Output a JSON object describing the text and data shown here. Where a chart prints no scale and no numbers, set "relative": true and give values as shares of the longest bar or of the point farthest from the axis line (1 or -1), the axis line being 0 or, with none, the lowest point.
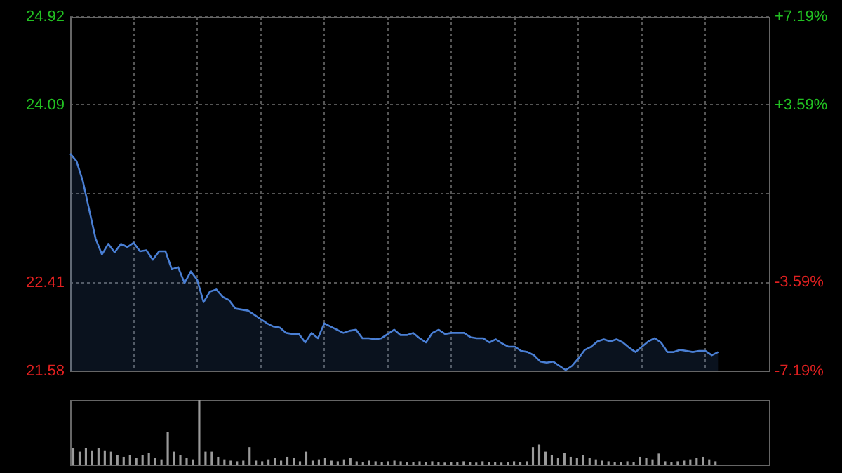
{
  "chart_data": [
    {
      "type": "area",
      "categories": [
        null,
        null,
        null,
        null,
        null,
        null,
        null,
        null,
        null,
        null,
        null,
        null,
        null,
        null,
        null,
        null,
        null,
        null,
        null,
        null,
        null,
        null,
        null,
        null,
        null,
        null,
        null,
        null,
        null,
        null,
        null,
        null,
        null,
        null,
        null,
        null,
        null,
        null,
        null,
        null,
        null,
        null,
        null,
        null,
        null,
        null,
        null,
        null,
        null,
        null,
        null,
        null,
        null,
        null,
        null,
        null,
        null,
        null,
        null,
        null,
        null,
        null,
        null,
        null,
        null,
        null,
        null,
        null,
        null,
        null,
        null,
        null,
        null,
        null,
        null,
        null,
        null,
        null,
        null,
        null,
        null,
        null,
        null,
        null,
        null,
        null,
        null,
        null,
        null,
        null,
        null,
        null,
        null,
        null,
        null,
        null,
        null,
        null,
        null,
        null,
        null,
        null,
        null,
        null,
        null,
        null,
        null,
        null,
        null,
        null,
        null
      ],
      "series": [
        {
          "color": "#4a7fd4",
          "values": [
            23.63,
            23.56,
            23.37,
            23.1,
            22.83,
            22.68,
            22.78,
            22.7,
            22.78,
            22.75,
            22.79,
            22.71,
            22.72,
            22.63,
            22.71,
            22.71,
            22.54,
            22.56,
            22.41,
            22.52,
            22.44,
            22.23,
            22.33,
            22.35,
            22.28,
            22.25,
            22.17,
            22.16,
            22.15,
            22.11,
            22.07,
            22.03,
            22.0,
            21.99,
            21.94,
            21.93,
            21.93,
            21.85,
            21.94,
            21.89,
            22.03,
            22.0,
            21.97,
            21.94,
            21.96,
            21.97,
            21.89,
            21.89,
            21.88,
            21.89,
            21.93,
            21.97,
            21.92,
            21.92,
            21.94,
            21.89,
            21.85,
            21.94,
            21.97,
            21.93,
            21.94,
            21.94,
            21.94,
            21.9,
            21.89,
            21.89,
            21.85,
            21.88,
            21.84,
            21.81,
            21.81,
            21.77,
            21.76,
            21.73,
            21.67,
            21.66,
            21.67,
            21.63,
            21.59,
            21.63,
            21.7,
            21.78,
            21.81,
            21.86,
            21.88,
            21.86,
            21.88,
            21.85,
            21.8,
            21.76,
            21.81,
            21.86,
            21.89,
            21.85,
            21.76,
            21.76,
            21.78,
            21.77,
            21.76,
            21.77,
            21.77,
            21.73,
            21.76,
            null,
            null,
            null,
            null,
            null,
            null,
            null,
            null
          ]
        }
      ],
      "ylim": [
        21.58,
        24.92
      ],
      "yticks": [
        21.58,
        22.41,
        {
          "value": 23.25,
          "label": null
        },
        24.09,
        24.92
      ],
      "y2lim": [
        -7.19,
        7.19
      ],
      "y2ticks": [
        {
          "value": -7.19,
          "label": "-7.19%"
        },
        {
          "value": -3.59,
          "label": "-3.59%"
        },
        {
          "value": 3.59,
          "label": "+3.59%"
        },
        {
          "value": 7.19,
          "label": "+7.19%"
        }
      ],
      "grid": true,
      "legend": false,
      "tick_labels": "y",
      "marker": "none",
      "line_style": "solid"
    },
    {
      "type": "bar",
      "relative": true,
      "categories": [
        null,
        null,
        null,
        null,
        null,
        null,
        null,
        null,
        null,
        null,
        null,
        null,
        null,
        null,
        null,
        null,
        null,
        null,
        null,
        null,
        null,
        null,
        null,
        null,
        null,
        null,
        null,
        null,
        null,
        null,
        null,
        null,
        null,
        null,
        null,
        null,
        null,
        null,
        null,
        null,
        null,
        null,
        null,
        null,
        null,
        null,
        null,
        null,
        null,
        null,
        null,
        null,
        null,
        null,
        null,
        null,
        null,
        null,
        null,
        null,
        null,
        null,
        null,
        null,
        null,
        null,
        null,
        null,
        null,
        null,
        null,
        null,
        null,
        null,
        null,
        null,
        null,
        null,
        null,
        null,
        null,
        null,
        null,
        null,
        null,
        null,
        null,
        null,
        null,
        null,
        null,
        null,
        null,
        null,
        null,
        null,
        null,
        null,
        null,
        null,
        null,
        null,
        null,
        null,
        null,
        null,
        null,
        null,
        null,
        null,
        null
      ],
      "series": [
        {
          "color": "#9a9a9a",
          "values": [
            0.25,
            0.2,
            0.25,
            0.22,
            0.25,
            0.22,
            0.2,
            0.15,
            0.12,
            0.15,
            0.1,
            0.15,
            0.18,
            0.1,
            0.08,
            0.5,
            0.2,
            0.15,
            0.1,
            0.08,
            1,
            0.2,
            0.2,
            0.12,
            0.08,
            0.06,
            0.05,
            0.06,
            0.27,
            0.06,
            0.05,
            0.08,
            0.1,
            0.06,
            0.12,
            0.1,
            0.05,
            0.2,
            0.06,
            0.08,
            0.1,
            0.06,
            0.05,
            0.08,
            0.1,
            0.05,
            0.04,
            0.06,
            0.05,
            0.04,
            0.05,
            0.06,
            0.05,
            0.04,
            0.04,
            0.05,
            0.04,
            0.05,
            0.04,
            0.03,
            0.04,
            0.04,
            0.05,
            0.04,
            0.03,
            0.05,
            0.04,
            0.04,
            0.03,
            0.04,
            0.05,
            0.04,
            0.05,
            0.27,
            0.31,
            0.2,
            0.15,
            0.1,
            0.18,
            0.12,
            0.1,
            0.15,
            0.1,
            0.08,
            0.06,
            0.05,
            0.04,
            0.04,
            0.05,
            0.04,
            0.12,
            0.1,
            0.08,
            0.17,
            0.05,
            0.04,
            0.05,
            0.06,
            0.08,
            0.1,
            0.12,
            0.08,
            0.05,
            null,
            null,
            null,
            null,
            null,
            null,
            null,
            null
          ]
        }
      ],
      "legend": false,
      "tick_labels": false
    }
  ]
}
